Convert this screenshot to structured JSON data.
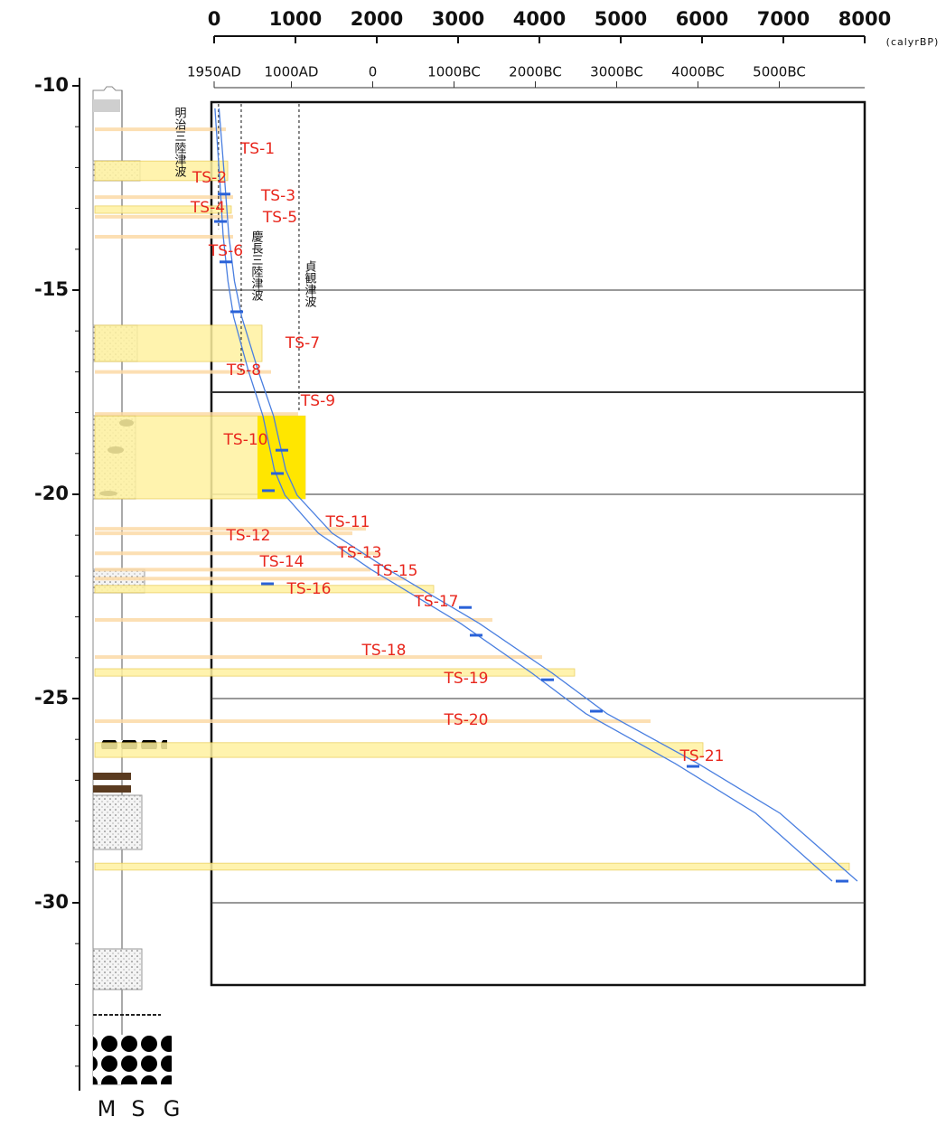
{
  "chart_data": {
    "type": "age-depth",
    "x_unit": "(calyrBP)",
    "xlim": [
      0,
      8000
    ],
    "xticks": [
      0,
      1000,
      2000,
      3000,
      4000,
      5000,
      6000,
      7000,
      8000
    ],
    "calendar_ticks": [
      {
        "value": 0,
        "label": "1950AD"
      },
      {
        "value": 950,
        "label": "1000AD"
      },
      {
        "value": 1950,
        "label": "0"
      },
      {
        "value": 2950,
        "label": "1000BC"
      },
      {
        "value": 3950,
        "label": "2000BC"
      },
      {
        "value": 4950,
        "label": "3000BC"
      },
      {
        "value": 5950,
        "label": "4000BC"
      },
      {
        "value": 6950,
        "label": "5000BC"
      }
    ],
    "ylim": [
      -34.6,
      -9.8
    ],
    "yticks": [
      -10,
      -15,
      -20,
      -25,
      -30
    ],
    "yminorticks": [
      -34,
      -33,
      -32,
      -31,
      -29,
      -28,
      -27,
      -26,
      -24,
      -23,
      -22,
      -21,
      -19,
      -18,
      -17,
      -16,
      -14,
      -13,
      -12,
      -11
    ],
    "hgrid": [
      -15,
      -17.5,
      -20,
      -25,
      -30
    ],
    "column_labels": [
      "M",
      "S",
      "G"
    ],
    "deposits": [
      {
        "label": "TS-1",
        "top": -11.02,
        "bottom": -11.1,
        "age": 144
      },
      {
        "label": "TS-2",
        "top": -11.84,
        "bottom": -12.32,
        "age": 167
      },
      {
        "label": "TS-3",
        "top": -12.68,
        "bottom": -12.76,
        "age": 233
      },
      {
        "label": "TS-4",
        "top": -12.94,
        "bottom": -13.12,
        "age": 211
      },
      {
        "label": "TS-5",
        "top": -13.16,
        "bottom": -13.24,
        "age": 233
      },
      {
        "label": "TS-6",
        "top": -13.65,
        "bottom": -13.73,
        "age": 233
      },
      {
        "label": "TS-7",
        "top": -15.86,
        "bottom": -16.75,
        "age": 589
      },
      {
        "label": "TS-8",
        "top": -16.96,
        "bottom": -17.04,
        "age": 700
      },
      {
        "label": "TS-9",
        "top": -17.99,
        "bottom": -18.07,
        "age": 1033
      },
      {
        "label": "TS-10",
        "top": -18.08,
        "bottom": -20.11,
        "age": 1122,
        "highlight": 533
      },
      {
        "label": "TS-11",
        "top": -20.8,
        "bottom": -20.88,
        "age": 1867
      },
      {
        "label": "TS-12",
        "top": -20.91,
        "bottom": -20.99,
        "age": 1700
      },
      {
        "label": "TS-13",
        "top": -21.4,
        "bottom": -21.48,
        "age": 2033
      },
      {
        "label": "TS-14",
        "top": -21.8,
        "bottom": -21.88,
        "age": 1922
      },
      {
        "label": "TS-15",
        "top": -22.02,
        "bottom": -22.1,
        "age": 2367
      },
      {
        "label": "TS-16",
        "top": -22.23,
        "bottom": -22.41,
        "age": 2700
      },
      {
        "label": "TS-17",
        "top": -23.03,
        "bottom": -23.11,
        "age": 3422
      },
      {
        "label": "TS-18",
        "top": -23.94,
        "bottom": -24.02,
        "age": 4033
      },
      {
        "label": "TS-19",
        "top": -24.27,
        "bottom": -24.45,
        "age": 4433
      },
      {
        "label": "TS-20",
        "top": -25.51,
        "bottom": -25.59,
        "age": 5367
      },
      {
        "label": "TS-21",
        "top": -26.08,
        "bottom": -26.44,
        "age": 6011
      },
      {
        "label": null,
        "top": -29.03,
        "bottom": -29.2,
        "age": 7811
      }
    ],
    "events": [
      {
        "label": "明治三陸津波",
        "age": 54,
        "depth": -13.5
      },
      {
        "label": "慶長三陸津波",
        "age": 333,
        "depth": -17.0
      },
      {
        "label": "貞観津波",
        "age": 1044,
        "depth": -18.0
      }
    ],
    "curve": {
      "depth": [
        -10.55,
        -11.44,
        -12.32,
        -13.65,
        -14.78,
        -15.66,
        -16.97,
        -18.08,
        -19.4,
        -20.02,
        -20.95,
        -21.84,
        -23.16,
        -24.38,
        -25.37,
        -26.59,
        -27.81,
        -29.47
      ],
      "series": [
        {
          "color": "#4a7fe0",
          "values": [
            10,
            40,
            70,
            110,
            170,
            240,
            420,
            600,
            740,
            870,
            1280,
            1930,
            3030,
            3910,
            4570,
            5670,
            6660,
            7600
          ]
        },
        {
          "color": "#4a7fe0",
          "values": [
            60,
            95,
            130,
            180,
            250,
            340,
            540,
            730,
            880,
            1020,
            1450,
            2140,
            3260,
            4160,
            4830,
            5950,
            6960,
            7910
          ]
        }
      ]
    },
    "samples": {
      "color": "#2a62d8",
      "depth": [
        -12.65,
        -13.32,
        -14.31,
        -15.53,
        -18.92,
        -19.49,
        -19.91,
        -22.19,
        -22.77,
        -23.45,
        -24.54,
        -25.31,
        -26.66,
        -29.47
      ],
      "age": [
        122,
        78,
        144,
        278,
        833,
        778,
        667,
        656,
        3089,
        3222,
        4100,
        4700,
        5889,
        7722
      ]
    }
  }
}
